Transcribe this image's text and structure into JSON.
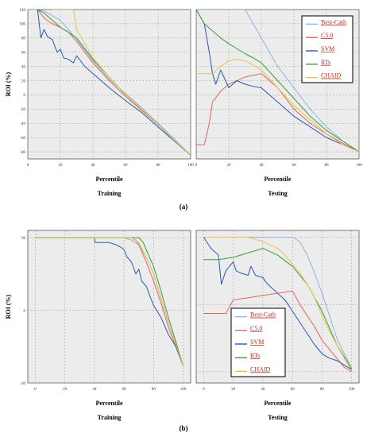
{
  "figure": {
    "ylabel": "ROI (%)",
    "xlabel": "Percentile",
    "panel_titles": [
      "Training",
      "Testing"
    ],
    "subfig_labels": [
      "(a)",
      "(b)"
    ]
  },
  "legend": {
    "entries": [
      {
        "name": "Best-Cath",
        "color": "#8fb3e0"
      },
      {
        "name": "C5.0",
        "color": "#e0665c"
      },
      {
        "name": "SVM",
        "color": "#2d55b0"
      },
      {
        "name": "RTs",
        "color": "#3a9a46"
      },
      {
        "name": "CHAID",
        "color": "#e6c24a"
      }
    ]
  },
  "chart_data": [
    {
      "type": "line",
      "panel": "a-training",
      "subfig": "(a)",
      "title": "Training",
      "xlabel": "Percentile",
      "ylabel": "ROI (%)",
      "xlim": [
        0,
        100
      ],
      "ylim": [
        -90,
        120
      ],
      "xticks": [
        0,
        20,
        40,
        60,
        80,
        100
      ],
      "yticks": [
        -80,
        -60,
        -40,
        -20,
        0,
        20,
        40,
        60,
        80,
        100,
        120
      ],
      "grid": true,
      "series": [
        {
          "name": "Best-Cath",
          "x": [
            0,
            5,
            10,
            20,
            30,
            40,
            50,
            60,
            70,
            80,
            90,
            100
          ],
          "y": [
            120,
            120,
            118,
            105,
            78,
            48,
            22,
            2,
            -18,
            -40,
            -62,
            -85
          ]
        },
        {
          "name": "C5.0",
          "x": [
            6,
            10,
            15,
            20,
            25,
            30,
            35,
            40,
            50,
            60,
            70,
            80,
            90,
            100
          ],
          "y": [
            120,
            108,
            100,
            95,
            88,
            75,
            60,
            45,
            20,
            -2,
            -22,
            -42,
            -64,
            -85
          ]
        },
        {
          "name": "SVM",
          "x": [
            6,
            8,
            10,
            12,
            15,
            18,
            20,
            22,
            25,
            28,
            30,
            35,
            40,
            50,
            60,
            70,
            80,
            90,
            100
          ],
          "y": [
            120,
            80,
            92,
            82,
            78,
            60,
            64,
            52,
            50,
            45,
            55,
            40,
            30,
            10,
            -8,
            -25,
            -45,
            -65,
            -85
          ]
        },
        {
          "name": "RTs",
          "x": [
            6,
            10,
            15,
            20,
            25,
            30,
            35,
            40,
            50,
            60,
            70,
            80,
            90,
            100
          ],
          "y": [
            120,
            115,
            105,
            95,
            88,
            80,
            65,
            50,
            25,
            0,
            -20,
            -42,
            -64,
            -85
          ]
        },
        {
          "name": "CHAID",
          "x": [
            15,
            20,
            28,
            30,
            35,
            40,
            50,
            60,
            70,
            80,
            90,
            100
          ],
          "y": [
            120,
            120,
            120,
            92,
            72,
            52,
            25,
            0,
            -20,
            -42,
            -64,
            -85
          ]
        }
      ]
    },
    {
      "type": "line",
      "panel": "a-testing",
      "subfig": "(a)",
      "title": "Testing",
      "xlabel": "Percentile",
      "ylabel": "",
      "xlim": [
        0,
        100
      ],
      "ylim": [
        -90,
        120
      ],
      "xticks": [
        0,
        20,
        40,
        60,
        80,
        100
      ],
      "grid": true,
      "series": [
        {
          "name": "Best-Cath",
          "x": [
            0,
            10,
            20,
            30,
            40,
            50,
            60,
            70,
            80,
            90,
            100
          ],
          "y": [
            120,
            120,
            120,
            120,
            80,
            40,
            10,
            -20,
            -45,
            -65,
            -80
          ]
        },
        {
          "name": "C5.0",
          "x": [
            0,
            5,
            8,
            10,
            15,
            20,
            30,
            40,
            50,
            60,
            70,
            80,
            90,
            100
          ],
          "y": [
            -70,
            -70,
            -40,
            -10,
            5,
            15,
            25,
            30,
            10,
            -20,
            -40,
            -55,
            -68,
            -80
          ]
        },
        {
          "name": "SVM",
          "x": [
            0,
            5,
            8,
            10,
            12,
            15,
            18,
            20,
            25,
            30,
            35,
            40,
            50,
            60,
            70,
            80,
            90,
            100
          ],
          "y": [
            120,
            100,
            60,
            30,
            15,
            35,
            20,
            10,
            20,
            15,
            12,
            10,
            -10,
            -30,
            -45,
            -60,
            -70,
            -80
          ]
        },
        {
          "name": "RTs",
          "x": [
            0,
            5,
            10,
            15,
            20,
            25,
            30,
            35,
            40,
            50,
            60,
            70,
            80,
            90,
            100
          ],
          "y": [
            120,
            100,
            90,
            80,
            72,
            65,
            58,
            52,
            45,
            20,
            -5,
            -30,
            -50,
            -65,
            -80
          ]
        },
        {
          "name": "CHAID",
          "x": [
            0,
            5,
            10,
            15,
            20,
            25,
            30,
            35,
            40,
            50,
            60,
            70,
            80,
            90,
            100
          ],
          "y": [
            30,
            30,
            30,
            40,
            48,
            50,
            48,
            42,
            35,
            10,
            -15,
            -35,
            -55,
            -70,
            -80
          ]
        }
      ]
    },
    {
      "type": "line",
      "panel": "b-training",
      "subfig": "(b)",
      "title": "Training",
      "xlabel": "Percentile",
      "ylabel": "ROI (%)",
      "xlim": [
        -5,
        105
      ],
      "ylim": [
        -30,
        33
      ],
      "xticks": [
        0,
        20,
        40,
        60,
        80,
        100
      ],
      "yticks": [
        30,
        0,
        -30
      ],
      "grid": true,
      "series": [
        {
          "name": "Best-Cath",
          "x": [
            0,
            60,
            65,
            70,
            75,
            80,
            85,
            90,
            95,
            100
          ],
          "y": [
            30,
            30,
            29,
            27,
            22,
            15,
            5,
            -5,
            -14,
            -23
          ]
        },
        {
          "name": "C5.0",
          "x": [
            0,
            60,
            65,
            68,
            70,
            75,
            80,
            85,
            90,
            95,
            100
          ],
          "y": [
            30,
            30,
            30,
            29,
            27,
            20,
            12,
            3,
            -7,
            -15,
            -23
          ]
        },
        {
          "name": "SVM",
          "x": [
            0,
            40,
            40.5,
            50,
            55,
            58,
            60,
            62,
            65,
            68,
            70,
            72,
            75,
            78,
            80,
            85,
            90,
            95,
            100
          ],
          "y": [
            30,
            30,
            28,
            28,
            27,
            26,
            25,
            22,
            20,
            15,
            17,
            12,
            10,
            5,
            2,
            -3,
            -10,
            -15,
            -23
          ]
        },
        {
          "name": "RTs",
          "x": [
            0,
            60,
            65,
            70,
            73,
            75,
            80,
            85,
            90,
            95,
            100
          ],
          "y": [
            30,
            30,
            30,
            30,
            28,
            25,
            18,
            8,
            -3,
            -13,
            -23
          ]
        },
        {
          "name": "CHAID",
          "x": [
            0,
            62,
            65,
            70,
            75,
            80,
            85,
            90,
            95,
            100
          ],
          "y": [
            30,
            30,
            30,
            28,
            22,
            15,
            5,
            -5,
            -14,
            -23
          ]
        }
      ]
    },
    {
      "type": "line",
      "panel": "b-testing",
      "subfig": "(b)",
      "title": "Testing",
      "xlabel": "Percentile",
      "ylabel": "",
      "xlim": [
        -5,
        105
      ],
      "ylim": [
        -35,
        33
      ],
      "xticks": [
        0,
        20,
        40,
        60,
        80,
        100
      ],
      "grid": true,
      "series": [
        {
          "name": "Best-Cath",
          "x": [
            0,
            50,
            60,
            65,
            70,
            75,
            80,
            85,
            90,
            95,
            100
          ],
          "y": [
            30,
            30,
            30,
            28,
            22,
            14,
            5,
            -5,
            -15,
            -22,
            -28
          ]
        },
        {
          "name": "C5.0",
          "x": [
            0,
            10,
            15,
            20,
            30,
            40,
            50,
            60,
            65,
            70,
            75,
            80,
            85,
            90,
            95,
            100
          ],
          "y": [
            -4,
            -4,
            -4,
            2,
            3,
            4,
            5,
            6,
            0,
            -5,
            -10,
            -16,
            -20,
            -24,
            -28,
            -30
          ]
        },
        {
          "name": "SVM",
          "x": [
            0,
            5,
            10,
            12,
            15,
            20,
            22,
            25,
            30,
            32,
            35,
            40,
            42,
            45,
            50,
            55,
            60,
            65,
            70,
            75,
            80,
            85,
            90,
            95,
            100
          ],
          "y": [
            30,
            25,
            22,
            9,
            15,
            19,
            15,
            14,
            13,
            17,
            13,
            12,
            10,
            8,
            5,
            2,
            -3,
            -8,
            -13,
            -18,
            -22,
            -24,
            -25,
            -27,
            -29
          ]
        },
        {
          "name": "RTs",
          "x": [
            0,
            10,
            20,
            30,
            40,
            50,
            60,
            70,
            80,
            90,
            100
          ],
          "y": [
            20,
            20,
            21,
            23,
            25,
            22,
            17,
            9,
            -3,
            -18,
            -29
          ]
        },
        {
          "name": "CHAID",
          "x": [
            0,
            10,
            20,
            30,
            40,
            50,
            55,
            60,
            65,
            70,
            75,
            80,
            85,
            90,
            95,
            100
          ],
          "y": [
            30,
            30,
            30,
            30,
            28,
            25,
            22,
            18,
            14,
            9,
            3,
            -5,
            -12,
            -18,
            -23,
            -28
          ]
        }
      ]
    }
  ]
}
